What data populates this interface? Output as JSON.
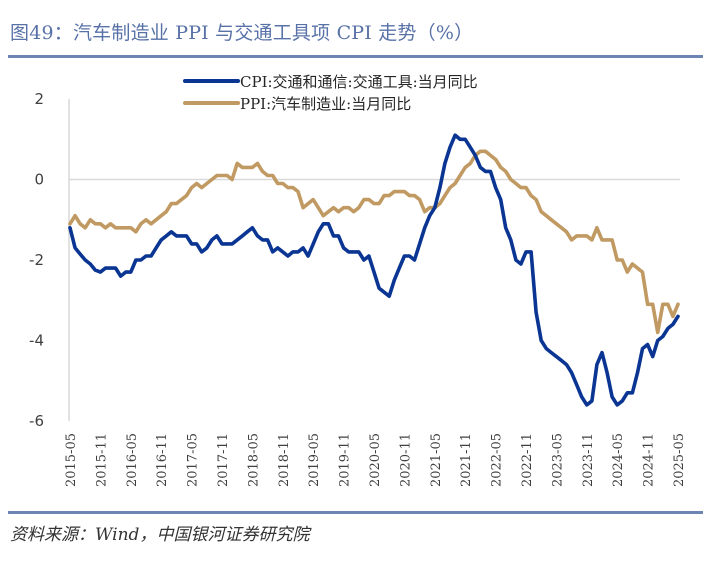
{
  "header": {
    "title": "图49：汽车制造业 PPI 与交通工具项 CPI 走势（%）"
  },
  "footer": {
    "source": "资料来源：Wind，中国银河证券研究院"
  },
  "colors": {
    "title": "#5872a8",
    "rule": "#6d85b3",
    "cpi": "#0a3592",
    "ppi": "#c09a62",
    "grid": "#d9d9d9"
  },
  "chart_data": {
    "type": "line",
    "title": "汽车制造业 PPI 与交通工具项 CPI 走势（%）",
    "xlabel": "",
    "ylabel": "",
    "ylim": [
      -6,
      2
    ],
    "yticks": [
      "2",
      "0",
      "-2",
      "-4",
      "-6"
    ],
    "ytick_values": [
      2,
      0,
      -2,
      -4,
      -6
    ],
    "grid": "zero-line only",
    "legend_position": "top-center",
    "x_start": "2015-05",
    "x_end": "2025-05",
    "xtick_labels": [
      "2015-05",
      "2015-11",
      "2016-05",
      "2016-11",
      "2017-05",
      "2017-11",
      "2018-05",
      "2018-11",
      "2019-05",
      "2019-11",
      "2020-05",
      "2020-11",
      "2021-05",
      "2021-11",
      "2022-05",
      "2022-11",
      "2023-05",
      "2023-11",
      "2024-05",
      "2024-11",
      "2025-05"
    ],
    "series": [
      {
        "name": "CPI:交通和通信:交通工具:当月同比",
        "values": [
          -1.2,
          -1.7,
          -1.85,
          -2.0,
          -2.1,
          -2.25,
          -2.3,
          -2.2,
          -2.2,
          -2.2,
          -2.4,
          -2.3,
          -2.3,
          -2.0,
          -2.0,
          -1.9,
          -1.9,
          -1.7,
          -1.5,
          -1.4,
          -1.3,
          -1.4,
          -1.4,
          -1.4,
          -1.6,
          -1.6,
          -1.8,
          -1.7,
          -1.5,
          -1.4,
          -1.6,
          -1.6,
          -1.6,
          -1.5,
          -1.4,
          -1.3,
          -1.2,
          -1.4,
          -1.5,
          -1.5,
          -1.8,
          -1.7,
          -1.8,
          -1.9,
          -1.8,
          -1.8,
          -1.7,
          -1.9,
          -1.6,
          -1.3,
          -1.1,
          -1.1,
          -1.4,
          -1.4,
          -1.7,
          -1.8,
          -1.8,
          -1.8,
          -2.0,
          -1.9,
          -2.3,
          -2.7,
          -2.8,
          -2.9,
          -2.5,
          -2.2,
          -1.9,
          -1.9,
          -2.0,
          -1.6,
          -1.2,
          -0.9,
          -0.7,
          -0.2,
          0.4,
          0.8,
          1.1,
          1.0,
          1.0,
          0.8,
          0.6,
          0.3,
          0.2,
          0.2,
          -0.2,
          -0.5,
          -1.2,
          -1.5,
          -2.0,
          -2.1,
          -1.8,
          -1.8,
          -3.3,
          -4.0,
          -4.2,
          -4.3,
          -4.4,
          -4.5,
          -4.6,
          -4.8,
          -5.1,
          -5.4,
          -5.6,
          -5.5,
          -4.6,
          -4.3,
          -4.8,
          -5.4,
          -5.6,
          -5.5,
          -5.3,
          -5.3,
          -4.8,
          -4.2,
          -4.1,
          -4.4,
          -4.0,
          -3.9,
          -3.7,
          -3.6,
          -3.4
        ]
      },
      {
        "name": "PPI:汽车制造业:当月同比",
        "values": [
          -1.1,
          -0.9,
          -1.1,
          -1.2,
          -1.0,
          -1.1,
          -1.1,
          -1.2,
          -1.1,
          -1.2,
          -1.2,
          -1.2,
          -1.2,
          -1.3,
          -1.1,
          -1.0,
          -1.1,
          -1.0,
          -0.9,
          -0.8,
          -0.6,
          -0.6,
          -0.5,
          -0.4,
          -0.2,
          -0.1,
          -0.2,
          -0.1,
          0.0,
          0.1,
          0.1,
          0.1,
          0.0,
          0.4,
          0.3,
          0.3,
          0.3,
          0.4,
          0.2,
          0.1,
          0.1,
          -0.1,
          -0.1,
          -0.2,
          -0.2,
          -0.3,
          -0.7,
          -0.6,
          -0.5,
          -0.7,
          -0.9,
          -0.8,
          -0.7,
          -0.8,
          -0.7,
          -0.7,
          -0.8,
          -0.7,
          -0.5,
          -0.5,
          -0.6,
          -0.6,
          -0.4,
          -0.4,
          -0.3,
          -0.3,
          -0.3,
          -0.4,
          -0.4,
          -0.5,
          -0.8,
          -0.7,
          -0.7,
          -0.6,
          -0.4,
          -0.2,
          -0.1,
          0.1,
          0.3,
          0.4,
          0.6,
          0.7,
          0.7,
          0.6,
          0.5,
          0.3,
          0.2,
          0.0,
          -0.1,
          -0.2,
          -0.2,
          -0.4,
          -0.5,
          -0.8,
          -0.9,
          -1.0,
          -1.1,
          -1.2,
          -1.3,
          -1.5,
          -1.4,
          -1.4,
          -1.4,
          -1.5,
          -1.2,
          -1.5,
          -1.5,
          -1.5,
          -2.0,
          -2.0,
          -2.3,
          -2.1,
          -2.2,
          -2.3,
          -3.1,
          -3.1,
          -3.8,
          -3.1,
          -3.1,
          -3.4,
          -3.1
        ]
      }
    ]
  }
}
